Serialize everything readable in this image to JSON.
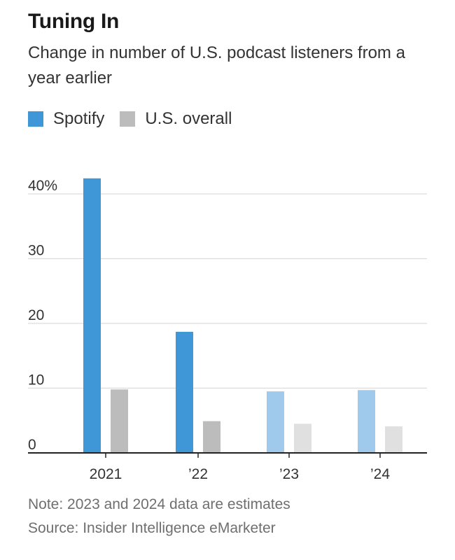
{
  "title": "Tuning In",
  "subtitle": "Change in number of U.S. podcast listeners from a year earlier",
  "note": "Note: 2023 and 2024 data are estimates",
  "source": "Source: Insider Intelligence eMarketer",
  "colors": {
    "spotify": "#3f97d8",
    "spotify_estimate": "#9fcaeb",
    "us_overall": "#bcbcbc",
    "us_overall_estimate": "#e0e0e0",
    "grid": "#dcdcdc",
    "axis": "#222222"
  },
  "chart_data": {
    "type": "bar",
    "categories": [
      "2021",
      "’22",
      "’23",
      "’24"
    ],
    "series": [
      {
        "name": "Spotify",
        "values": [
          42.4,
          18.7,
          9.5,
          9.7
        ]
      },
      {
        "name": "U.S. overall",
        "values": [
          9.8,
          4.9,
          4.5,
          4.1
        ]
      }
    ],
    "estimated_categories": [
      "’23",
      "’24"
    ],
    "ylim": [
      0,
      40
    ],
    "yticks": [
      0,
      10,
      20,
      30,
      40
    ],
    "ytick_labels": [
      "0",
      "10",
      "20",
      "30",
      "40%"
    ],
    "xlabel": "",
    "ylabel": "",
    "legend": "top-left",
    "grid": true
  }
}
